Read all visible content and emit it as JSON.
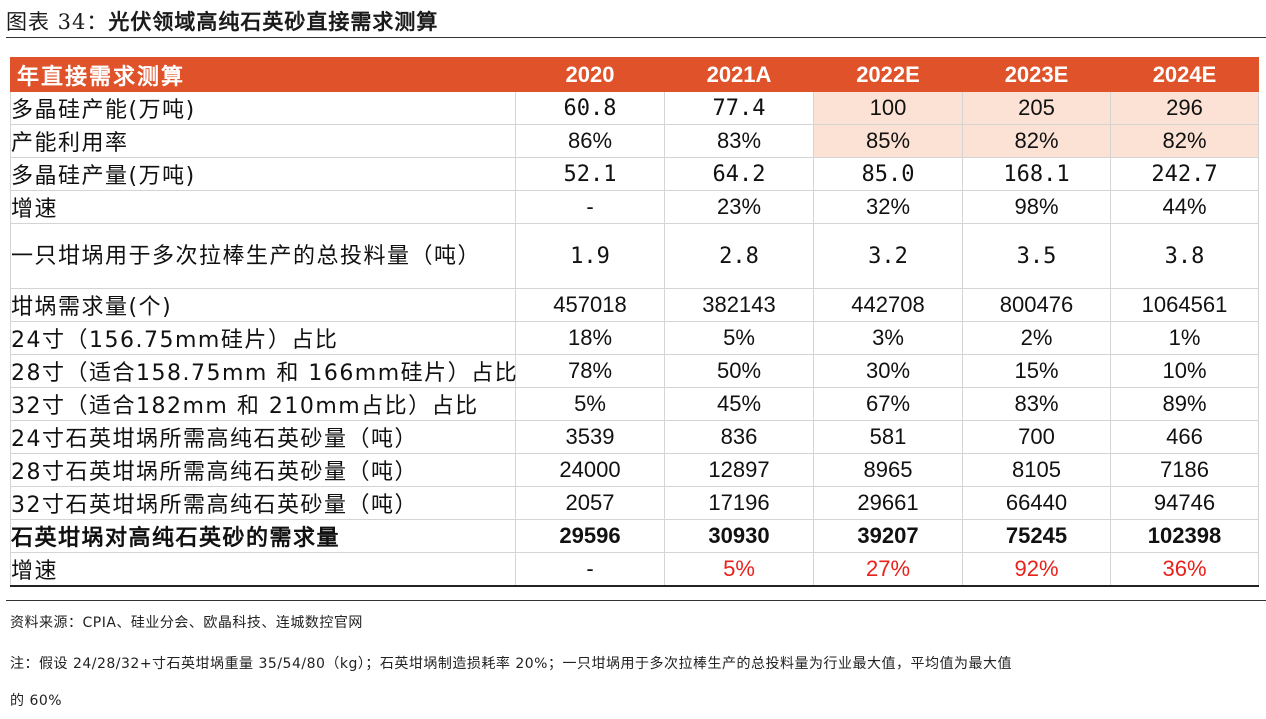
{
  "figure": {
    "label": "图表 34：",
    "title": "光伏领域高纯石英砂直接需求测算"
  },
  "table": {
    "header": {
      "row_label": "年直接需求测算",
      "years": [
        "2020",
        "2021A",
        "2022E",
        "2023E",
        "2024E"
      ]
    },
    "rows": [
      {
        "label": "多晶硅产能(万吨)",
        "values": [
          "60.8",
          "77.4",
          "100",
          "205",
          "296"
        ]
      },
      {
        "label": "产能利用率",
        "values": [
          "86%",
          "83%",
          "85%",
          "82%",
          "82%"
        ]
      },
      {
        "label": "多晶硅产量(万吨)",
        "values": [
          "52.1",
          "64.2",
          "85.0",
          "168.1",
          "242.7"
        ]
      },
      {
        "label": "增速",
        "values": [
          "-",
          "23%",
          "32%",
          "98%",
          "44%"
        ]
      },
      {
        "label": "一只坩埚用于多次拉棒生产的总投料量（吨）",
        "values": [
          "1.9",
          "2.8",
          "3.2",
          "3.5",
          "3.8"
        ]
      },
      {
        "label": "坩埚需求量(个)",
        "values": [
          "457018",
          "382143",
          "442708",
          "800476",
          "1064561"
        ]
      },
      {
        "label": "24寸（156.75mm硅片）占比",
        "values": [
          "18%",
          "5%",
          "3%",
          "2%",
          "1%"
        ]
      },
      {
        "label": "28寸（适合158.75mm 和 166mm硅片）占比",
        "values": [
          "78%",
          "50%",
          "30%",
          "15%",
          "10%"
        ]
      },
      {
        "label": "32寸（适合182mm 和 210mm占比）占比",
        "values": [
          "5%",
          "45%",
          "67%",
          "83%",
          "89%"
        ]
      },
      {
        "label": "24寸石英坩埚所需高纯石英砂量（吨）",
        "values": [
          "3539",
          "836",
          "581",
          "700",
          "466"
        ]
      },
      {
        "label": "28寸石英坩埚所需高纯石英砂量（吨）",
        "values": [
          "24000",
          "12897",
          "8965",
          "8105",
          "7186"
        ]
      },
      {
        "label": "32寸石英坩埚所需高纯石英砂量（吨）",
        "values": [
          "2057",
          "17196",
          "29661",
          "66440",
          "94746"
        ]
      },
      {
        "label": "石英坩埚对高纯石英砂的需求量",
        "values": [
          "29596",
          "30930",
          "39207",
          "75245",
          "102398"
        ]
      },
      {
        "label": "增速",
        "values": [
          "-",
          "5%",
          "27%",
          "92%",
          "36%"
        ]
      }
    ]
  },
  "footer": {
    "source": "资料来源：CPIA、硅业分会、欧晶科技、连城数控官网",
    "note_line1": "注：假设 24/28/32+寸石英坩埚重量 35/54/80（kg）；石英坩埚制造损耗率 20%；一只坩埚用于多次拉棒生产的总投料量为行业最大值，平均值为最大值",
    "note_line2": "的 60%"
  },
  "colors": {
    "header_bg": "#e0532a",
    "highlight_bg": "#fbe2d5",
    "growth_red": "#e8211b"
  }
}
